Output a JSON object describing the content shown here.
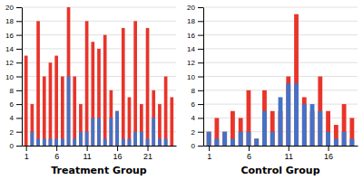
{
  "chart_data": [
    {
      "type": "bar",
      "xlabel": "Treatment Group",
      "x": [
        1,
        2,
        3,
        4,
        5,
        6,
        7,
        8,
        9,
        10,
        11,
        12,
        13,
        14,
        15,
        16,
        17,
        18,
        19,
        20,
        21,
        22,
        23,
        24,
        25
      ],
      "series": [
        {
          "color": "#e8342a",
          "values": [
            13,
            6,
            18,
            10,
            12,
            13,
            10,
            20,
            10,
            6,
            18,
            15,
            14,
            16,
            8,
            5,
            17,
            7,
            18,
            6,
            17,
            8,
            6,
            10,
            7
          ]
        },
        {
          "color": "#4472c4",
          "values": [
            0,
            2,
            1,
            1,
            1,
            1,
            1,
            10,
            1,
            2,
            2,
            4,
            4,
            1,
            4,
            5,
            1,
            1,
            2,
            2,
            1,
            4,
            1,
            1,
            0
          ]
        }
      ],
      "xlim": [
        0.3,
        25.7
      ],
      "xticks": [
        1,
        6,
        11,
        16,
        21
      ],
      "ylim": [
        0,
        20
      ],
      "yticks": [
        0,
        2,
        4,
        6,
        8,
        10,
        12,
        14,
        16,
        18,
        20
      ],
      "grid": true
    },
    {
      "type": "bar",
      "xlabel": "Control Group",
      "x": [
        1,
        2,
        3,
        4,
        5,
        6,
        7,
        8,
        9,
        10,
        11,
        12,
        13,
        14,
        15,
        16,
        17,
        18,
        19
      ],
      "series": [
        {
          "color": "#e8342a",
          "values": [
            2,
            4,
            2,
            5,
            4,
            8,
            1,
            8,
            5,
            5,
            10,
            19,
            7,
            5,
            10,
            5,
            3,
            6,
            4
          ]
        },
        {
          "color": "#4472c4",
          "values": [
            2,
            1,
            2,
            1,
            2,
            2,
            1,
            5,
            2,
            7,
            9,
            9,
            6,
            6,
            5,
            2,
            1,
            2,
            1
          ]
        }
      ],
      "xlim": [
        0.3,
        19.7
      ],
      "xticks": [
        1,
        6,
        11,
        16
      ],
      "ylim": [
        0,
        20
      ],
      "yticks": [
        0,
        2,
        4,
        6,
        8,
        10,
        12,
        14,
        16,
        18,
        20
      ],
      "grid": true
    }
  ]
}
